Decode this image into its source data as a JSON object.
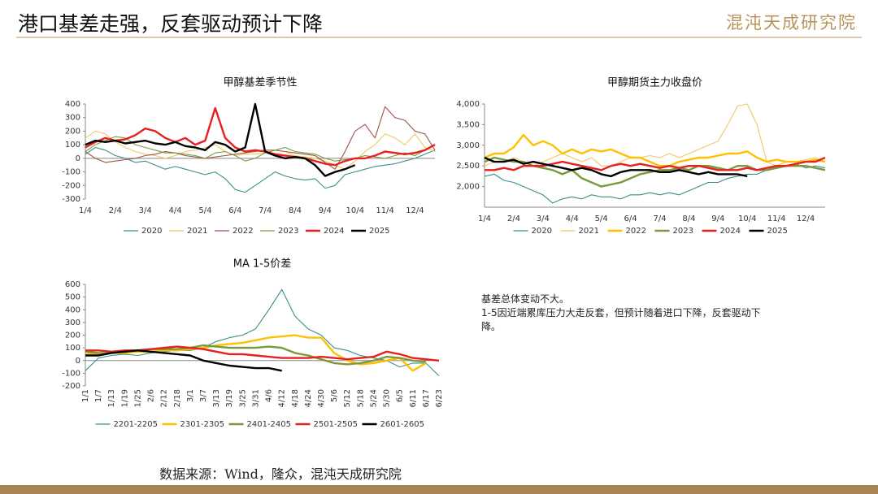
{
  "header": {
    "title": "港口基差走强，反套驱动预计下降",
    "logo": "混沌天成研究院"
  },
  "notes": [
    "基差总体变动不大。",
    "1-5因近端累库压力大走反套，但预计随着进口下降，反套驱动下降。"
  ],
  "source": "数据来源：Wind，隆众，混沌天成研究院",
  "chart_data": [
    {
      "type": "line",
      "title": "甲醇基差季节性",
      "categories": [
        "1/4",
        null,
        null,
        "2/4",
        null,
        null,
        "3/4",
        null,
        null,
        "4/4",
        null,
        null,
        "5/4",
        null,
        null,
        "6/4",
        null,
        null,
        "7/4",
        null,
        null,
        "8/4",
        null,
        null,
        "9/4",
        null,
        null,
        "10/4",
        null,
        null,
        "11/4",
        null,
        null,
        "12/4",
        null,
        null
      ],
      "ylim": [
        -300,
        400
      ],
      "yticks": [
        -300,
        -200,
        -100,
        0,
        100,
        200,
        300,
        400
      ],
      "series": [
        {
          "name": "2020",
          "color": "#3a8f8a",
          "values": [
            30,
            80,
            60,
            20,
            0,
            -30,
            -20,
            -50,
            -80,
            -60,
            -80,
            -100,
            -120,
            -100,
            -150,
            -230,
            -250,
            -200,
            -150,
            -100,
            -130,
            -150,
            -160,
            -150,
            -220,
            -200,
            -120,
            -100,
            -80,
            -60,
            -50,
            -40,
            -20,
            0,
            30,
            60
          ]
        },
        {
          "name": "2021",
          "color": "#f0c860",
          "values": [
            150,
            200,
            180,
            120,
            80,
            50,
            30,
            20,
            0,
            20,
            50,
            60,
            80,
            100,
            50,
            20,
            30,
            30,
            40,
            60,
            50,
            20,
            10,
            0,
            -20,
            -50,
            -80,
            -20,
            50,
            100,
            180,
            150,
            100,
            180,
            80,
            50
          ]
        },
        {
          "name": "2022",
          "color": "#a0524a",
          "values": [
            50,
            0,
            -30,
            -20,
            -10,
            0,
            20,
            30,
            50,
            40,
            20,
            10,
            0,
            10,
            20,
            30,
            40,
            50,
            60,
            60,
            50,
            40,
            30,
            20,
            -30,
            -80,
            50,
            200,
            250,
            150,
            380,
            300,
            280,
            200,
            180,
            60
          ]
        },
        {
          "name": "2023",
          "color": "#7a9a3a",
          "values": [
            50,
            100,
            130,
            160,
            150,
            100,
            80,
            60,
            40,
            40,
            30,
            20,
            0,
            40,
            50,
            20,
            -20,
            0,
            40,
            60,
            80,
            50,
            40,
            30,
            0,
            -20,
            -10,
            0,
            20,
            10,
            0,
            20,
            40,
            20,
            60,
            100
          ]
        },
        {
          "name": "2024",
          "color": "#e8201e",
          "values": [
            80,
            120,
            150,
            130,
            140,
            170,
            220,
            200,
            150,
            120,
            150,
            100,
            130,
            370,
            150,
            80,
            50,
            60,
            50,
            30,
            20,
            10,
            0,
            -20,
            -40,
            -50,
            -20,
            0,
            0,
            20,
            50,
            40,
            30,
            40,
            60,
            100
          ]
        },
        {
          "name": "2025",
          "color": "#000000",
          "values": [
            100,
            130,
            120,
            130,
            110,
            120,
            130,
            110,
            100,
            120,
            90,
            80,
            60,
            120,
            100,
            50,
            80,
            400,
            50,
            20,
            0,
            10,
            0,
            -50,
            -130,
            -100,
            -80,
            -50,
            null,
            null,
            null,
            null,
            null,
            null,
            null,
            null
          ]
        }
      ]
    },
    {
      "type": "line",
      "title": "甲醇期货主力收盘价",
      "categories": [
        "1/4",
        null,
        null,
        "2/4",
        null,
        null,
        "3/4",
        null,
        null,
        "4/4",
        null,
        null,
        "5/4",
        null,
        null,
        "6/4",
        null,
        null,
        "7/4",
        null,
        null,
        "8/4",
        null,
        null,
        "9/4",
        null,
        null,
        "10/4",
        null,
        null,
        "11/4",
        null,
        null,
        "12/4",
        null,
        null
      ],
      "ylim": [
        1500,
        4000
      ],
      "yticks": [
        {
          "value": 2000,
          "label": "2,000"
        },
        {
          "value": 2500,
          "label": "2,500"
        },
        {
          "value": 3000,
          "label": "3,000"
        },
        {
          "value": 3500,
          "label": "3,500"
        },
        {
          "value": 4000,
          "label": "4,000"
        }
      ],
      "series": [
        {
          "name": "2020",
          "color": "#3a8f8a",
          "values": [
            2250,
            2300,
            2150,
            2100,
            2000,
            1900,
            1800,
            1600,
            1700,
            1750,
            1700,
            1800,
            1750,
            1750,
            1700,
            1800,
            1800,
            1850,
            1800,
            1850,
            1800,
            1900,
            2000,
            2100,
            2100,
            2200,
            2250,
            2300,
            2300,
            2400,
            2500,
            2500,
            2550,
            2450,
            2500,
            2450
          ]
        },
        {
          "name": "2021",
          "color": "#f0c860",
          "values": [
            2500,
            2600,
            2600,
            2700,
            2600,
            2500,
            2600,
            2700,
            2800,
            2700,
            2600,
            2700,
            2500,
            2500,
            2600,
            2700,
            2700,
            2750,
            2700,
            2800,
            2700,
            2800,
            2900,
            3000,
            3100,
            3500,
            3950,
            4000,
            3500,
            2600,
            2500,
            2600,
            2600,
            2650,
            2700,
            2600
          ]
        },
        {
          "name": "2022",
          "color": "#ffc000",
          "values": [
            2700,
            2800,
            2800,
            2950,
            3250,
            3000,
            3100,
            3000,
            2800,
            2900,
            2800,
            2900,
            2850,
            2900,
            2800,
            2700,
            2700,
            2600,
            2500,
            2500,
            2600,
            2650,
            2700,
            2700,
            2750,
            2800,
            2800,
            2850,
            2700,
            2600,
            2650,
            2600,
            2600,
            2600,
            2650,
            2600
          ]
        },
        {
          "name": "2023",
          "color": "#7a9a3a",
          "values": [
            2600,
            2700,
            2650,
            2600,
            2600,
            2500,
            2450,
            2400,
            2300,
            2400,
            2200,
            2100,
            2000,
            2050,
            2100,
            2200,
            2300,
            2350,
            2400,
            2400,
            2450,
            2400,
            2500,
            2500,
            2450,
            2400,
            2500,
            2500,
            2400,
            2400,
            2450,
            2500,
            2500,
            2500,
            2450,
            2400
          ]
        },
        {
          "name": "2024",
          "color": "#e8201e",
          "values": [
            2400,
            2400,
            2450,
            2400,
            2500,
            2500,
            2500,
            2550,
            2600,
            2550,
            2500,
            2450,
            2400,
            2500,
            2550,
            2500,
            2550,
            2500,
            2450,
            2500,
            2450,
            2500,
            2500,
            2450,
            2400,
            2400,
            2400,
            2450,
            2400,
            2450,
            2500,
            2500,
            2550,
            2600,
            2600,
            2700
          ]
        },
        {
          "name": "2025",
          "color": "#000000",
          "values": [
            2700,
            2600,
            2600,
            2650,
            2550,
            2600,
            2550,
            2500,
            2450,
            2400,
            2450,
            2400,
            2300,
            2250,
            2350,
            2400,
            2400,
            2400,
            2350,
            2350,
            2400,
            2350,
            2300,
            2350,
            2300,
            2300,
            2300,
            2250,
            null,
            null,
            null,
            null,
            null,
            null,
            null,
            null
          ]
        }
      ]
    },
    {
      "type": "line",
      "title": "MA 1-5价差",
      "categories": [
        "1/1",
        "1/7",
        "1/13",
        "1/19",
        "1/25",
        "2/6",
        "2/12",
        "2/18",
        "3/1",
        "3/7",
        "3/13",
        "3/19",
        "3/25",
        "3/31",
        "4/6",
        "4/12",
        "4/18",
        "4/24",
        "4/30",
        "5/6",
        "5/12",
        "5/18",
        "5/24",
        "5/30",
        "6/5",
        "6/11",
        "6/17",
        "6/23"
      ],
      "ylim": [
        -200,
        600
      ],
      "yticks": [
        -200,
        -100,
        0,
        100,
        200,
        300,
        400,
        500,
        600
      ],
      "series": [
        {
          "name": "2201-2205",
          "color": "#3a8f8a",
          "values": [
            -80,
            20,
            40,
            50,
            40,
            60,
            70,
            80,
            80,
            100,
            150,
            180,
            200,
            250,
            400,
            560,
            350,
            250,
            200,
            100,
            80,
            40,
            20,
            0,
            -50,
            -20,
            -20,
            -120
          ]
        },
        {
          "name": "2301-2305",
          "color": "#ffc000",
          "values": [
            50,
            50,
            60,
            60,
            70,
            70,
            80,
            80,
            90,
            100,
            120,
            130,
            140,
            160,
            180,
            190,
            200,
            180,
            180,
            60,
            0,
            -30,
            -20,
            0,
            20,
            -80,
            -20,
            null
          ]
        },
        {
          "name": "2401-2405",
          "color": "#7a9a3a",
          "values": [
            70,
            60,
            60,
            70,
            80,
            90,
            90,
            90,
            100,
            120,
            110,
            100,
            100,
            100,
            110,
            100,
            60,
            40,
            10,
            -20,
            -30,
            -20,
            0,
            30,
            20,
            0,
            -10,
            null
          ]
        },
        {
          "name": "2501-2505",
          "color": "#e8201e",
          "values": [
            80,
            80,
            70,
            80,
            80,
            90,
            100,
            110,
            100,
            90,
            70,
            50,
            50,
            40,
            30,
            20,
            20,
            20,
            30,
            20,
            10,
            20,
            30,
            70,
            50,
            20,
            10,
            0
          ]
        },
        {
          "name": "2601-2605",
          "color": "#000000",
          "values": [
            40,
            40,
            60,
            70,
            80,
            70,
            60,
            50,
            40,
            0,
            -20,
            -40,
            -50,
            -60,
            -60,
            -80,
            null,
            null,
            null,
            null,
            null,
            null,
            null,
            null,
            null,
            null,
            null,
            null
          ]
        }
      ]
    }
  ]
}
